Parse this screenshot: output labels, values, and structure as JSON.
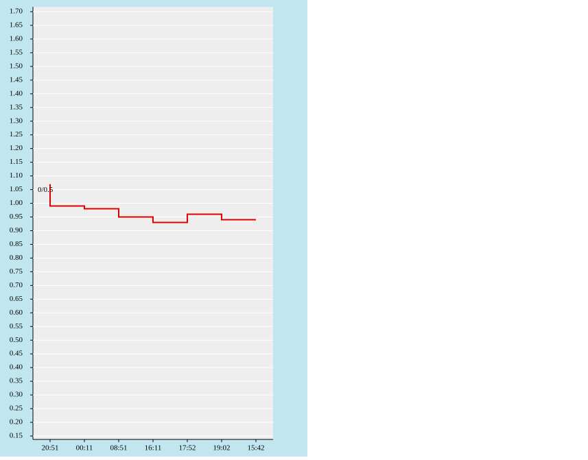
{
  "chart_data": {
    "type": "step-line",
    "categories": [
      "20:51",
      "00:11",
      "08:51",
      "16:11",
      "17:52",
      "19:02",
      "15:42"
    ],
    "series": [
      {
        "color": "#e00000",
        "x": [
          "20:51",
          "20:51",
          "00:11",
          "08:51",
          "16:11",
          "17:52",
          "19:02",
          "15:42"
        ],
        "values": [
          1.07,
          0.99,
          0.98,
          0.95,
          0.93,
          0.96,
          0.94,
          0.94
        ]
      }
    ],
    "annotation": "0/0.5",
    "ylim": [
      0.1375,
      1.7175
    ],
    "yticks": [
      {
        "value": 0.15,
        "label": "0.15"
      },
      {
        "value": 0.2,
        "label": "0.20"
      },
      {
        "value": 0.25,
        "label": "0.25"
      },
      {
        "value": 0.3,
        "label": "0.30"
      },
      {
        "value": 0.35,
        "label": "0.35"
      },
      {
        "value": 0.4,
        "label": "0.40"
      },
      {
        "value": 0.45,
        "label": "0.45"
      },
      {
        "value": 0.5,
        "label": "0.50"
      },
      {
        "value": 0.55,
        "label": "0.55"
      },
      {
        "value": 0.6,
        "label": "0.60"
      },
      {
        "value": 0.65,
        "label": "0.65"
      },
      {
        "value": 0.7,
        "label": "0.70"
      },
      {
        "value": 0.75,
        "label": "0.75"
      },
      {
        "value": 0.8,
        "label": "0.80"
      },
      {
        "value": 0.85,
        "label": "0.85"
      },
      {
        "value": 0.9,
        "label": "0.90"
      },
      {
        "value": 0.95,
        "label": "0.95"
      },
      {
        "value": 1.0,
        "label": "1.00"
      },
      {
        "value": 1.05,
        "label": "1.05"
      },
      {
        "value": 1.1,
        "label": "1.10"
      },
      {
        "value": 1.15,
        "label": "1.15"
      },
      {
        "value": 1.2,
        "label": "1.20"
      },
      {
        "value": 1.25,
        "label": "1.25"
      },
      {
        "value": 1.3,
        "label": "1.30"
      },
      {
        "value": 1.35,
        "label": "1.35"
      },
      {
        "value": 1.4,
        "label": "1.40"
      },
      {
        "value": 1.45,
        "label": "1.45"
      },
      {
        "value": 1.5,
        "label": "1.50"
      },
      {
        "value": 1.55,
        "label": "1.55"
      },
      {
        "value": 1.6,
        "label": "1.60"
      },
      {
        "value": 1.65,
        "label": "1.65"
      },
      {
        "value": 1.7,
        "label": "1.70"
      }
    ],
    "grid": true
  }
}
